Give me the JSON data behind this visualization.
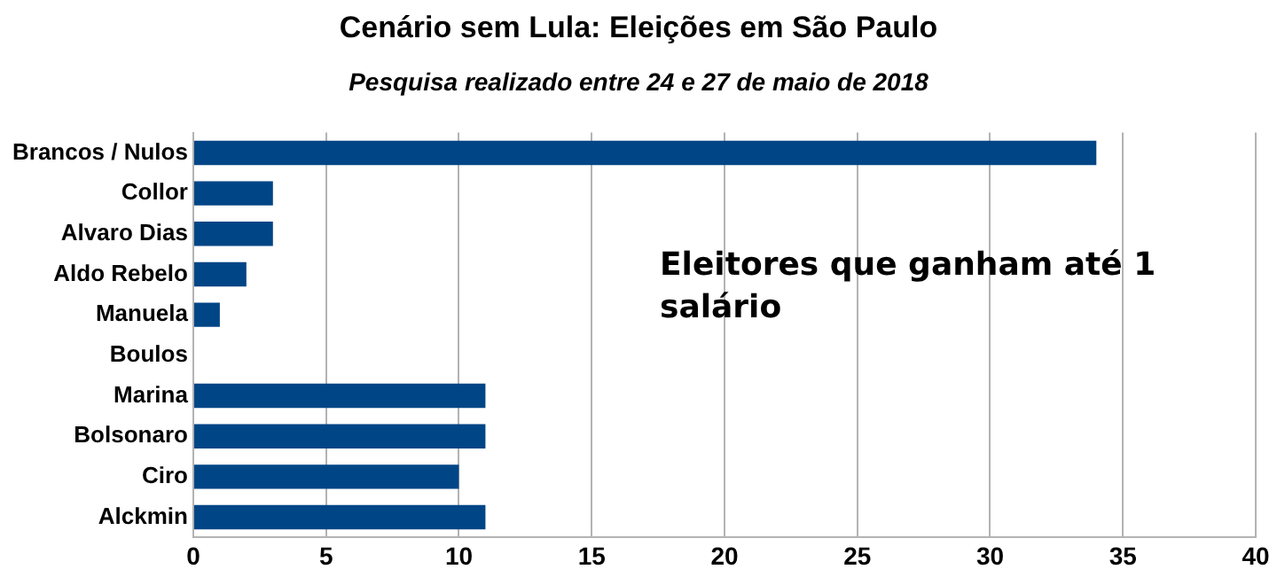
{
  "chart_data": {
    "type": "bar",
    "orientation": "horizontal",
    "title": "Cenário sem Lula: Eleições em São Paulo",
    "subtitle": "Pesquisa realizado entre 24 e 27 de maio de 2018",
    "categories": [
      "Brancos / Nulos",
      "Collor",
      "Alvaro Dias",
      "Aldo Rebelo",
      "Manuela",
      "Boulos",
      "Marina",
      "Bolsonaro",
      "Ciro",
      "Alckmin"
    ],
    "values": [
      34,
      3,
      3,
      2,
      1,
      0,
      11,
      11,
      10,
      11
    ],
    "color": "#004586",
    "xlim": [
      0,
      40
    ],
    "xticks": [
      0,
      5,
      10,
      15,
      20,
      25,
      30,
      35,
      40
    ],
    "grid": "x",
    "annotations": [
      "Eleitores que ganham até 1 salário"
    ]
  }
}
